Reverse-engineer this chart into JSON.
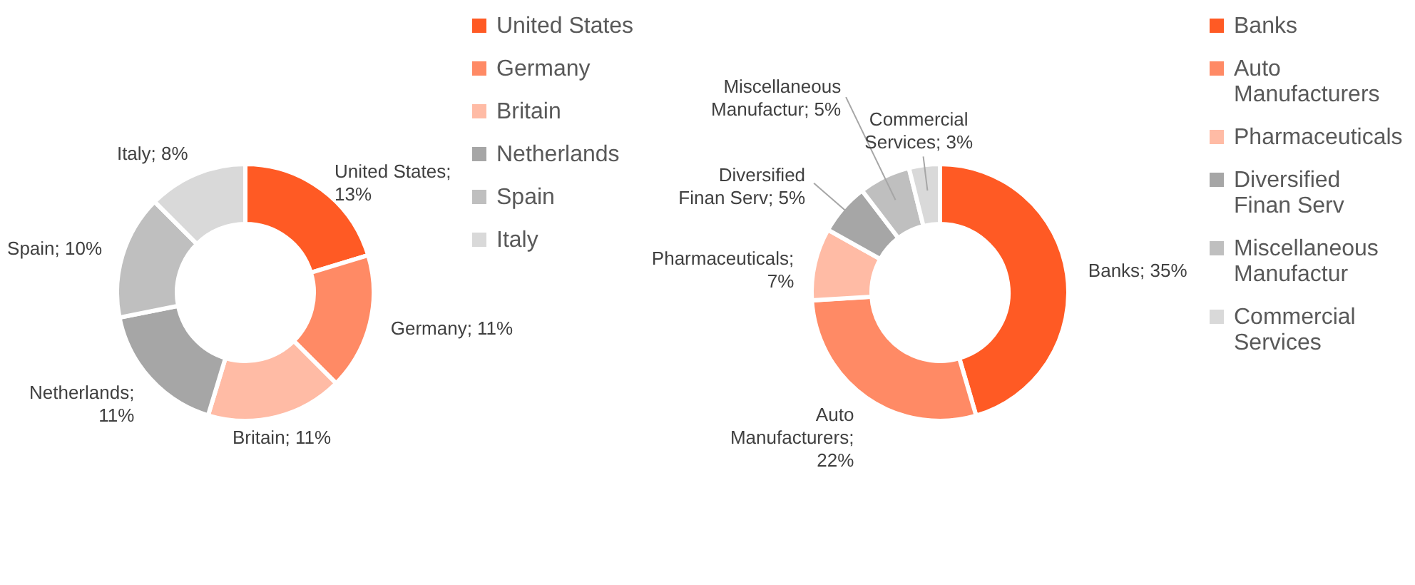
{
  "chart_data": [
    {
      "type": "donut",
      "categories": [
        "United States",
        "Germany",
        "Britain",
        "Netherlands",
        "Spain",
        "Italy"
      ],
      "values": [
        13,
        11,
        11,
        11,
        10,
        8
      ],
      "colors": [
        "#ff5a24",
        "#ff8a65",
        "#ffbba5",
        "#a6a6a6",
        "#bfbfbf",
        "#d9d9d9"
      ],
      "value_labels": [
        "United States; 13%",
        "Germany; 11%",
        "Britain; 11%",
        "Netherlands; 11%",
        "Spain; 10%",
        "Italy; 8%"
      ],
      "legend": "right"
    },
    {
      "type": "donut",
      "categories": [
        "Banks",
        "Auto Manufacturers",
        "Pharmaceuticals",
        "Diversified Finan Serv",
        "Miscellaneous Manufactur",
        "Commercial Services"
      ],
      "values": [
        35,
        22,
        7,
        5,
        5,
        3
      ],
      "colors": [
        "#ff5a24",
        "#ff8a65",
        "#ffbba5",
        "#a6a6a6",
        "#bfbfbf",
        "#d9d9d9"
      ],
      "value_labels": [
        "Banks; 35%",
        "Auto Manufacturers; 22%",
        "Pharmaceuticals; 7%",
        "Diversified Finan Serv; 5%",
        "Miscellaneous Manufactur; 5%",
        "Commercial Services; 3%"
      ],
      "legend": "right"
    }
  ]
}
